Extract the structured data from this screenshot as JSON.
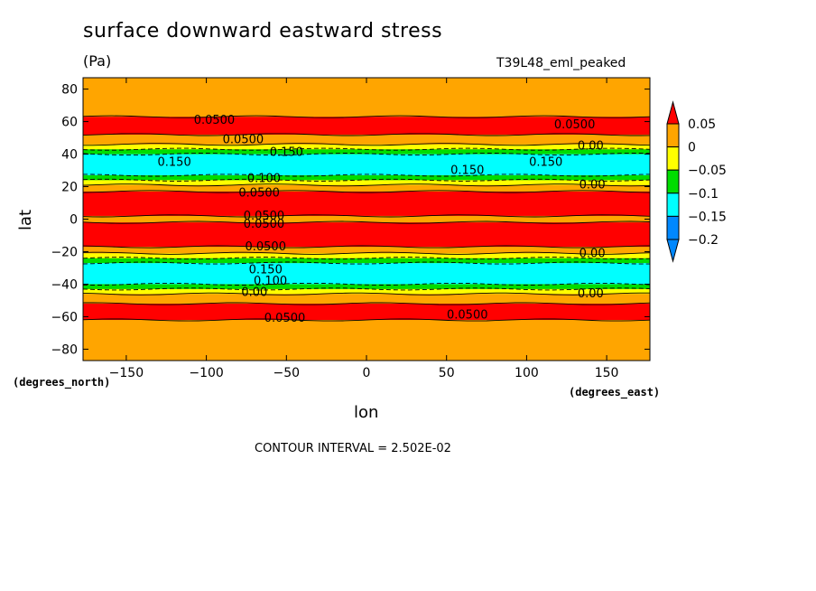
{
  "chart_data": {
    "type": "heatmap",
    "title": "surface downward eastward stress",
    "units": "(Pa)",
    "run_label": "T39L48_eml_peaked",
    "xlabel": "lon",
    "ylabel": "lat",
    "x_units": "(degrees_east)",
    "y_units": "(degrees_north)",
    "contour_interval": "CONTOUR INTERVAL = 2.502E-02",
    "xlim": [
      -177,
      177
    ],
    "ylim": [
      -87,
      87
    ],
    "x_ticks": [
      -150,
      -100,
      -50,
      0,
      50,
      100,
      150
    ],
    "x_tick_labels": [
      "−150",
      "−100",
      "−50",
      "0",
      "50",
      "100",
      "150"
    ],
    "y_ticks": [
      -80,
      -60,
      -40,
      -20,
      0,
      20,
      40,
      60,
      80
    ],
    "y_tick_labels": [
      "−80",
      "−60",
      "−40",
      "−20",
      "0",
      "20",
      "40",
      "60",
      "80"
    ],
    "colorbar": {
      "levels": [
        0.05,
        0,
        -0.05,
        -0.1,
        -0.15,
        -0.2
      ],
      "labels": [
        "0.05",
        "0",
        "−0.05",
        "−0.1",
        "−0.15",
        "−0.2"
      ],
      "colors": [
        "#ff0000",
        "#ffa500",
        "#ffff00",
        "#00dd00",
        "#00ffff",
        "#0088ff"
      ]
    },
    "zonal_bands": [
      {
        "lat_min": -87,
        "lat_max": -62,
        "value": 0.02
      },
      {
        "lat_min": -62,
        "lat_max": -52,
        "value": 0.06
      },
      {
        "lat_min": -52,
        "lat_max": -46,
        "value": 0.02
      },
      {
        "lat_min": -46,
        "lat_max": -43,
        "value": -0.03
      },
      {
        "lat_min": -43,
        "lat_max": -40,
        "value": -0.08
      },
      {
        "lat_min": -40,
        "lat_max": -27,
        "value": -0.13
      },
      {
        "lat_min": -27,
        "lat_max": -24,
        "value": -0.08
      },
      {
        "lat_min": -24,
        "lat_max": -21,
        "value": -0.03
      },
      {
        "lat_min": -21,
        "lat_max": -17,
        "value": 0.02
      },
      {
        "lat_min": -17,
        "lat_max": -2,
        "value": 0.06
      },
      {
        "lat_min": -2,
        "lat_max": 2,
        "value": 0.02
      },
      {
        "lat_min": 2,
        "lat_max": 17,
        "value": 0.06
      },
      {
        "lat_min": 17,
        "lat_max": 21,
        "value": 0.02
      },
      {
        "lat_min": 21,
        "lat_max": 24,
        "value": -0.03
      },
      {
        "lat_min": 24,
        "lat_max": 27,
        "value": -0.08
      },
      {
        "lat_min": 27,
        "lat_max": 40,
        "value": -0.13
      },
      {
        "lat_min": 40,
        "lat_max": 43,
        "value": -0.08
      },
      {
        "lat_min": 43,
        "lat_max": 46,
        "value": -0.03
      },
      {
        "lat_min": 46,
        "lat_max": 52,
        "value": 0.02
      },
      {
        "lat_min": 52,
        "lat_max": 63,
        "value": 0.06
      },
      {
        "lat_min": 63,
        "lat_max": 87,
        "value": 0.02
      }
    ],
    "contour_labels": [
      {
        "text": "0.0500",
        "lon": -95,
        "lat": 61
      },
      {
        "text": "0.0500",
        "lon": 130,
        "lat": 58
      },
      {
        "text": "0.0500",
        "lon": -77,
        "lat": 49
      },
      {
        "text": "0.00",
        "lon": 140,
        "lat": 45
      },
      {
        "text": "0.150",
        "lon": -120,
        "lat": 35
      },
      {
        "text": "0.150",
        "lon": -50,
        "lat": 41
      },
      {
        "text": "0.150",
        "lon": 63,
        "lat": 30
      },
      {
        "text": "0.150",
        "lon": 112,
        "lat": 35
      },
      {
        "text": "0.100",
        "lon": -64,
        "lat": 25
      },
      {
        "text": "0.00",
        "lon": 141,
        "lat": 21
      },
      {
        "text": "0.0500",
        "lon": -67,
        "lat": 16
      },
      {
        "text": "0.0500",
        "lon": -64,
        "lat": 2
      },
      {
        "text": "0.0500",
        "lon": -64,
        "lat": -3
      },
      {
        "text": "0.0500",
        "lon": -63,
        "lat": -17
      },
      {
        "text": "0.00",
        "lon": 141,
        "lat": -21
      },
      {
        "text": "0.150",
        "lon": -63,
        "lat": -31
      },
      {
        "text": "0.100",
        "lon": -60,
        "lat": -38
      },
      {
        "text": "0.00",
        "lon": -70,
        "lat": -45
      },
      {
        "text": "0.00",
        "lon": 140,
        "lat": -46
      },
      {
        "text": "0.0500",
        "lon": -51,
        "lat": -61
      },
      {
        "text": "0.0500",
        "lon": 63,
        "lat": -59
      }
    ]
  }
}
